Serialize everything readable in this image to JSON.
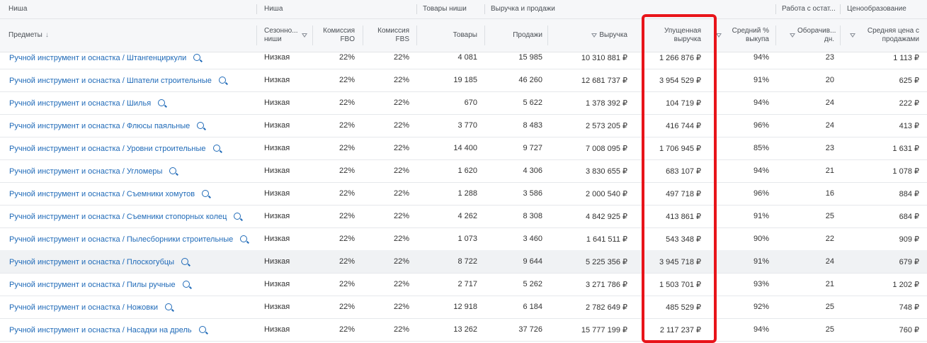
{
  "group_headers": {
    "niche": "Ниша",
    "niche2": "Ниша",
    "goods": "Товары ниши",
    "revenue": "Выручка и продажи",
    "stock": "Работа с остат...",
    "pricing": "Ценообразование"
  },
  "columns": {
    "subjects": "Предметы",
    "subjects_sort": "↓",
    "season": "Сезонно... ниши",
    "fbo": "Комиссия FBO",
    "fbs": "Комиссия FBS",
    "goods": "Товары",
    "sales": "Продажи",
    "revenue": "Выручка",
    "lost": "Упущенная выручка",
    "buyout": "Средний % выкупа",
    "turnover": "Оборачив... дн.",
    "avgprice": "Средняя цена с продажами"
  },
  "rows": [
    {
      "name": "Ручной инструмент и оснастка / Штангенциркули",
      "season": "Низкая",
      "fbo": "22%",
      "fbs": "22%",
      "goods": "4 081",
      "sales": "15 985",
      "revenue": "10 310 881 ₽",
      "lost": "1 266 876 ₽",
      "buyout": "94%",
      "turnover": "23",
      "price": "1 113 ₽"
    },
    {
      "name": "Ручной инструмент и оснастка / Шпатели строительные",
      "season": "Низкая",
      "fbo": "22%",
      "fbs": "22%",
      "goods": "19 185",
      "sales": "46 260",
      "revenue": "12 681 737 ₽",
      "lost": "3 954 529 ₽",
      "buyout": "91%",
      "turnover": "20",
      "price": "625 ₽"
    },
    {
      "name": "Ручной инструмент и оснастка / Шилья",
      "season": "Низкая",
      "fbo": "22%",
      "fbs": "22%",
      "goods": "670",
      "sales": "5 622",
      "revenue": "1 378 392 ₽",
      "lost": "104 719 ₽",
      "buyout": "94%",
      "turnover": "24",
      "price": "222 ₽"
    },
    {
      "name": "Ручной инструмент и оснастка / Флюсы паяльные",
      "season": "Низкая",
      "fbo": "22%",
      "fbs": "22%",
      "goods": "3 770",
      "sales": "8 483",
      "revenue": "2 573 205 ₽",
      "lost": "416 744 ₽",
      "buyout": "96%",
      "turnover": "24",
      "price": "413 ₽"
    },
    {
      "name": "Ручной инструмент и оснастка / Уровни строительные",
      "season": "Низкая",
      "fbo": "22%",
      "fbs": "22%",
      "goods": "14 400",
      "sales": "9 727",
      "revenue": "7 008 095 ₽",
      "lost": "1 706 945 ₽",
      "buyout": "85%",
      "turnover": "23",
      "price": "1 631 ₽"
    },
    {
      "name": "Ручной инструмент и оснастка / Угломеры",
      "season": "Низкая",
      "fbo": "22%",
      "fbs": "22%",
      "goods": "1 620",
      "sales": "4 306",
      "revenue": "3 830 655 ₽",
      "lost": "683 107 ₽",
      "buyout": "94%",
      "turnover": "21",
      "price": "1 078 ₽"
    },
    {
      "name": "Ручной инструмент и оснастка / Съемники хомутов",
      "season": "Низкая",
      "fbo": "22%",
      "fbs": "22%",
      "goods": "1 288",
      "sales": "3 586",
      "revenue": "2 000 540 ₽",
      "lost": "497 718 ₽",
      "buyout": "96%",
      "turnover": "16",
      "price": "884 ₽"
    },
    {
      "name": "Ручной инструмент и оснастка / Съемники стопорных колец",
      "season": "Низкая",
      "fbo": "22%",
      "fbs": "22%",
      "goods": "4 262",
      "sales": "8 308",
      "revenue": "4 842 925 ₽",
      "lost": "413 861 ₽",
      "buyout": "91%",
      "turnover": "25",
      "price": "684 ₽"
    },
    {
      "name": "Ручной инструмент и оснастка / Пылесборники строительные",
      "season": "Низкая",
      "fbo": "22%",
      "fbs": "22%",
      "goods": "1 073",
      "sales": "3 460",
      "revenue": "1 641 511 ₽",
      "lost": "543 348 ₽",
      "buyout": "90%",
      "turnover": "22",
      "price": "909 ₽"
    },
    {
      "name": "Ручной инструмент и оснастка / Плоскогубцы",
      "season": "Низкая",
      "fbo": "22%",
      "fbs": "22%",
      "goods": "8 722",
      "sales": "9 644",
      "revenue": "5 225 356 ₽",
      "lost": "3 945 718 ₽",
      "buyout": "91%",
      "turnover": "24",
      "price": "679 ₽"
    },
    {
      "name": "Ручной инструмент и оснастка / Пилы ручные",
      "season": "Низкая",
      "fbo": "22%",
      "fbs": "22%",
      "goods": "2 717",
      "sales": "5 262",
      "revenue": "3 271 786 ₽",
      "lost": "1 503 701 ₽",
      "buyout": "93%",
      "turnover": "21",
      "price": "1 202 ₽"
    },
    {
      "name": "Ручной инструмент и оснастка / Ножовки",
      "season": "Низкая",
      "fbo": "22%",
      "fbs": "22%",
      "goods": "12 918",
      "sales": "6 184",
      "revenue": "2 782 649 ₽",
      "lost": "485 529 ₽",
      "buyout": "92%",
      "turnover": "25",
      "price": "748 ₽"
    },
    {
      "name": "Ручной инструмент и оснастка / Насадки на дрель",
      "season": "Низкая",
      "fbo": "22%",
      "fbs": "22%",
      "goods": "13 262",
      "sales": "37 726",
      "revenue": "15 777 199 ₽",
      "lost": "2 117 237 ₽",
      "buyout": "94%",
      "turnover": "25",
      "price": "760 ₽"
    }
  ],
  "highlighted_row": 9,
  "colors": {
    "link": "#1f6ab8",
    "highlight_box": "#e8141a",
    "header_bg": "#f6f7f9"
  }
}
